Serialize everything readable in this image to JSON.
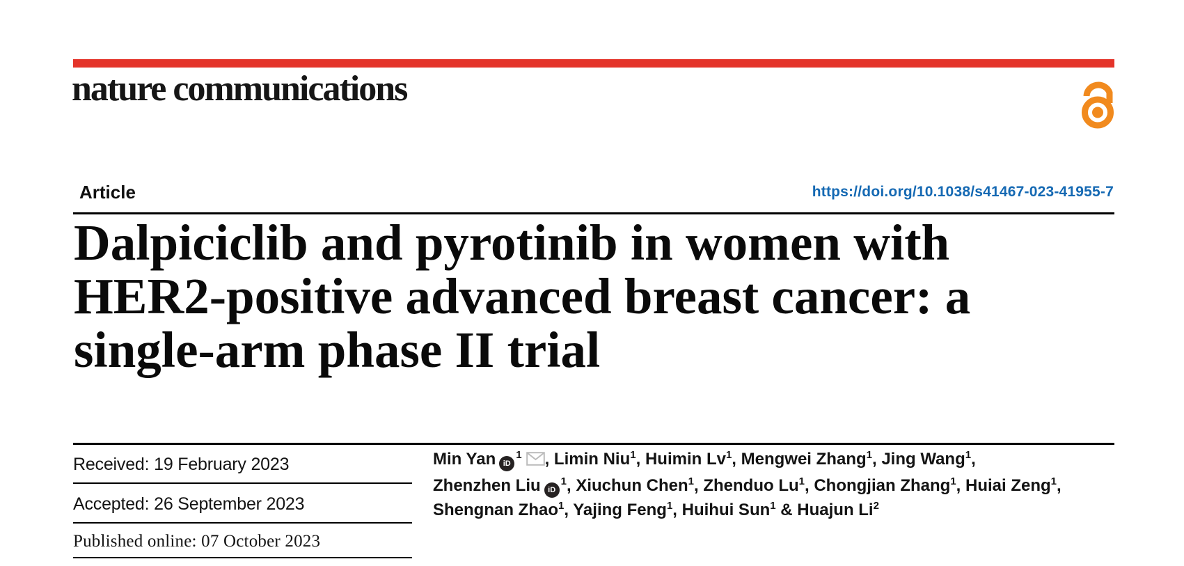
{
  "brand": {
    "logo_text": "nature communications",
    "bar_color": "#e4342a",
    "open_access_icon": "open-access-padlock",
    "open_access_color": "#f18a1e"
  },
  "header": {
    "article_label": "Article",
    "doi_link": "https://doi.org/10.1038/s41467-023-41955-7",
    "doi_color": "#1569b3"
  },
  "title": {
    "lines": [
      "Dalpiciclib and pyrotinib in women with",
      "HER2-positive advanced breast cancer: a",
      "single-arm phase II trial"
    ]
  },
  "dates": {
    "received": "Received: 19 February 2023",
    "accepted": "Accepted: 26 September 2023",
    "published": "Published online: 07 October 2023"
  },
  "authors": {
    "orcid_icon_label": "iD",
    "lines": [
      [
        {
          "text": "Min Yan"
        },
        {
          "icon": "orcid"
        },
        {
          "sup": "1"
        },
        {
          "icon": "mail"
        },
        {
          "text": ", Limin Niu"
        },
        {
          "sup": "1"
        },
        {
          "text": ", Huimin Lv"
        },
        {
          "sup": "1"
        },
        {
          "text": ", Mengwei Zhang"
        },
        {
          "sup": "1"
        },
        {
          "text": ", Jing Wang"
        },
        {
          "sup": "1"
        },
        {
          "text": ","
        }
      ],
      [
        {
          "text": "Zhenzhen Liu"
        },
        {
          "icon": "orcid"
        },
        {
          "sup": "1"
        },
        {
          "text": ", Xiuchun Chen"
        },
        {
          "sup": "1"
        },
        {
          "text": ", Zhenduo Lu"
        },
        {
          "sup": "1"
        },
        {
          "text": ", Chongjian Zhang"
        },
        {
          "sup": "1"
        },
        {
          "text": ", Huiai Zeng"
        },
        {
          "sup": "1"
        },
        {
          "text": ","
        }
      ],
      [
        {
          "text": "Shengnan Zhao"
        },
        {
          "sup": "1"
        },
        {
          "text": ", Yajing Feng"
        },
        {
          "sup": "1"
        },
        {
          "text": ", Huihui Sun"
        },
        {
          "sup": "1"
        },
        {
          "text": " & Huajun Li"
        },
        {
          "sup": "2"
        }
      ]
    ]
  }
}
